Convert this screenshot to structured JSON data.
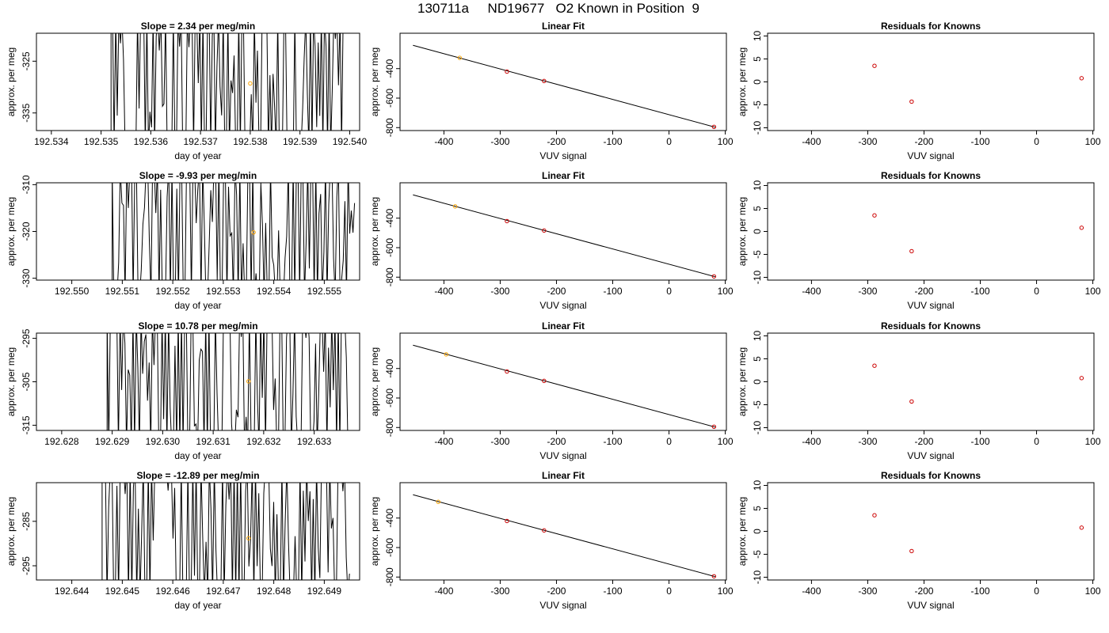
{
  "main_title": "130711a     ND19677   O2 Known in Position  9",
  "chart_data": [
    {
      "type": "line",
      "row": 1,
      "panel": "timeseries",
      "title": "Slope =  2.34  per meg/min",
      "xlabel": "day of year",
      "ylabel": "approx. per meg",
      "xlim": [
        192.5337,
        192.5402
      ],
      "ylim": [
        -338.4,
        -319.6
      ],
      "xticks": [
        "192.534",
        "192.535",
        "192.536",
        "192.537",
        "192.538",
        "192.539",
        "192.540"
      ],
      "yticks": [
        "-325",
        "-335"
      ],
      "x_start": 192.5352,
      "x_end": 192.5399,
      "trace_seed": 11,
      "marker": {
        "x": 192.538,
        "y": -329.3,
        "color": "#ffa500"
      }
    },
    {
      "type": "scatter",
      "row": 1,
      "panel": "fit",
      "title": "Linear Fit",
      "xlabel": "VUV signal",
      "ylabel": "approx. per meg",
      "xlim": [
        -478,
        102
      ],
      "ylim": [
        -820,
        -160
      ],
      "xticks": [
        "-400",
        "-300",
        "-200",
        "-100",
        "0",
        "100"
      ],
      "yticks": [
        "-400",
        "-600",
        "-800"
      ],
      "points": [
        {
          "x": -288,
          "y": -420
        },
        {
          "x": -222,
          "y": -484
        },
        {
          "x": 80,
          "y": -795
        }
      ],
      "point_color": "#cc0000",
      "unknown": {
        "x": -372,
        "y": -327,
        "color": "#ffa500"
      },
      "fit_line": {
        "x1": -455,
        "y1": -242,
        "x2": 82,
        "y2": -797
      }
    },
    {
      "type": "scatter",
      "row": 1,
      "panel": "residuals",
      "title": "Residuals for Knowns",
      "xlabel": "VUV signal",
      "ylabel": "approx. per meg",
      "xlim": [
        -478,
        102
      ],
      "ylim": [
        -10.6,
        10.6
      ],
      "xticks": [
        "-400",
        "-300",
        "-200",
        "-100",
        "0",
        "100"
      ],
      "yticks": [
        "10",
        "5",
        "0",
        "-5",
        "-10"
      ],
      "points": [
        {
          "x": -288,
          "y": 3.5
        },
        {
          "x": -222,
          "y": -4.3
        },
        {
          "x": 80,
          "y": 0.8
        }
      ],
      "point_color": "#cc0000"
    },
    {
      "type": "line",
      "row": 2,
      "panel": "timeseries",
      "title": "Slope =  -9.93  per meg/min",
      "xlabel": "day of year",
      "ylabel": "approx. per meg",
      "xlim": [
        192.5493,
        192.5557
      ],
      "ylim": [
        -330.4,
        -309.6
      ],
      "xticks": [
        "192.550",
        "192.551",
        "192.552",
        "192.553",
        "192.554",
        "192.555"
      ],
      "yticks": [
        "-310",
        "-320",
        "-330"
      ],
      "x_start": 192.5508,
      "x_end": 192.5556,
      "trace_seed": 23,
      "marker": {
        "x": 192.5536,
        "y": -320.2,
        "color": "#ffa500"
      }
    },
    {
      "type": "scatter",
      "row": 2,
      "panel": "fit",
      "title": "Linear Fit",
      "xlabel": "VUV signal",
      "ylabel": "approx. per meg",
      "xlim": [
        -478,
        102
      ],
      "ylim": [
        -820,
        -160
      ],
      "xticks": [
        "-400",
        "-300",
        "-200",
        "-100",
        "0",
        "100"
      ],
      "yticks": [
        "-400",
        "-600",
        "-800"
      ],
      "points": [
        {
          "x": -288,
          "y": -420
        },
        {
          "x": -222,
          "y": -484
        },
        {
          "x": 80,
          "y": -795
        }
      ],
      "point_color": "#cc0000",
      "unknown": {
        "x": -380,
        "y": -320,
        "color": "#ffa500"
      },
      "fit_line": {
        "x1": -455,
        "y1": -242,
        "x2": 82,
        "y2": -797
      }
    },
    {
      "type": "scatter",
      "row": 2,
      "panel": "residuals",
      "title": "Residuals for Knowns",
      "xlabel": "VUV signal",
      "ylabel": "approx. per meg",
      "xlim": [
        -478,
        102
      ],
      "ylim": [
        -10.6,
        10.6
      ],
      "xticks": [
        "-400",
        "-300",
        "-200",
        "-100",
        "0",
        "100"
      ],
      "yticks": [
        "10",
        "5",
        "0",
        "-5",
        "-10"
      ],
      "points": [
        {
          "x": -288,
          "y": 3.5
        },
        {
          "x": -222,
          "y": -4.3
        },
        {
          "x": 80,
          "y": 0.8
        }
      ],
      "point_color": "#cc0000"
    },
    {
      "type": "line",
      "row": 3,
      "panel": "timeseries",
      "title": "Slope =  10.78  per meg/min",
      "xlabel": "day of year",
      "ylabel": "approx. per meg",
      "xlim": [
        192.6275,
        192.6339
      ],
      "ylim": [
        -316.2,
        -293.8
      ],
      "xticks": [
        "192.628",
        "192.629",
        "192.630",
        "192.631",
        "192.632",
        "192.633"
      ],
      "yticks": [
        "-295",
        "-305",
        "-315"
      ],
      "x_start": 192.6289,
      "x_end": 192.6337,
      "trace_seed": 37,
      "marker": {
        "x": 192.6317,
        "y": -304.9,
        "color": "#ffa500"
      }
    },
    {
      "type": "scatter",
      "row": 3,
      "panel": "fit",
      "title": "Linear Fit",
      "xlabel": "VUV signal",
      "ylabel": "approx. per meg",
      "xlim": [
        -478,
        102
      ],
      "ylim": [
        -820,
        -160
      ],
      "xticks": [
        "-400",
        "-300",
        "-200",
        "-100",
        "0",
        "100"
      ],
      "yticks": [
        "-400",
        "-600",
        "-800"
      ],
      "points": [
        {
          "x": -288,
          "y": -420
        },
        {
          "x": -222,
          "y": -484
        },
        {
          "x": 80,
          "y": -795
        }
      ],
      "point_color": "#cc0000",
      "unknown": {
        "x": -396,
        "y": -304,
        "color": "#ffa500"
      },
      "fit_line": {
        "x1": -455,
        "y1": -242,
        "x2": 82,
        "y2": -797
      }
    },
    {
      "type": "scatter",
      "row": 3,
      "panel": "residuals",
      "title": "Residuals for Knowns",
      "xlabel": "VUV signal",
      "ylabel": "approx. per meg",
      "xlim": [
        -478,
        102
      ],
      "ylim": [
        -10.6,
        10.6
      ],
      "xticks": [
        "-400",
        "-300",
        "-200",
        "-100",
        "0",
        "100"
      ],
      "yticks": [
        "10",
        "5",
        "0",
        "-5",
        "-10"
      ],
      "points": [
        {
          "x": -288,
          "y": 3.5
        },
        {
          "x": -222,
          "y": -4.3
        },
        {
          "x": 80,
          "y": 0.8
        }
      ],
      "point_color": "#cc0000"
    },
    {
      "type": "line",
      "row": 4,
      "panel": "timeseries",
      "title": "Slope =  -12.89  per meg/min",
      "xlabel": "day of year",
      "ylabel": "approx. per meg",
      "xlim": [
        192.6433,
        192.6497
      ],
      "ylim": [
        -298.2,
        -276.3
      ],
      "xticks": [
        "192.644",
        "192.645",
        "192.646",
        "192.647",
        "192.648",
        "192.649"
      ],
      "yticks": [
        "-285",
        "-295"
      ],
      "x_start": 192.6446,
      "x_end": 192.6495,
      "trace_seed": 53,
      "marker": {
        "x": 192.6475,
        "y": -288.8,
        "color": "#ffa500"
      }
    },
    {
      "type": "scatter",
      "row": 4,
      "panel": "fit",
      "title": "Linear Fit",
      "xlabel": "VUV signal",
      "ylabel": "approx. per meg",
      "xlim": [
        -478,
        102
      ],
      "ylim": [
        -820,
        -160
      ],
      "xticks": [
        "-400",
        "-300",
        "-200",
        "-100",
        "0",
        "100"
      ],
      "yticks": [
        "-400",
        "-600",
        "-800"
      ],
      "points": [
        {
          "x": -288,
          "y": -420
        },
        {
          "x": -222,
          "y": -484
        },
        {
          "x": 80,
          "y": -795
        }
      ],
      "point_color": "#cc0000",
      "unknown": {
        "x": -410,
        "y": -290,
        "color": "#ffa500"
      },
      "fit_line": {
        "x1": -455,
        "y1": -242,
        "x2": 82,
        "y2": -797
      }
    },
    {
      "type": "scatter",
      "row": 4,
      "panel": "residuals",
      "title": "Residuals for Knowns",
      "xlabel": "VUV signal",
      "ylabel": "approx. per meg",
      "xlim": [
        -478,
        102
      ],
      "ylim": [
        -10.6,
        10.6
      ],
      "xticks": [
        "-400",
        "-300",
        "-200",
        "-100",
        "0",
        "100"
      ],
      "yticks": [
        "10",
        "5",
        "0",
        "-5",
        "-10"
      ],
      "points": [
        {
          "x": -288,
          "y": 3.5
        },
        {
          "x": -222,
          "y": -4.3
        },
        {
          "x": 80,
          "y": 0.8
        }
      ],
      "point_color": "#cc0000"
    }
  ]
}
